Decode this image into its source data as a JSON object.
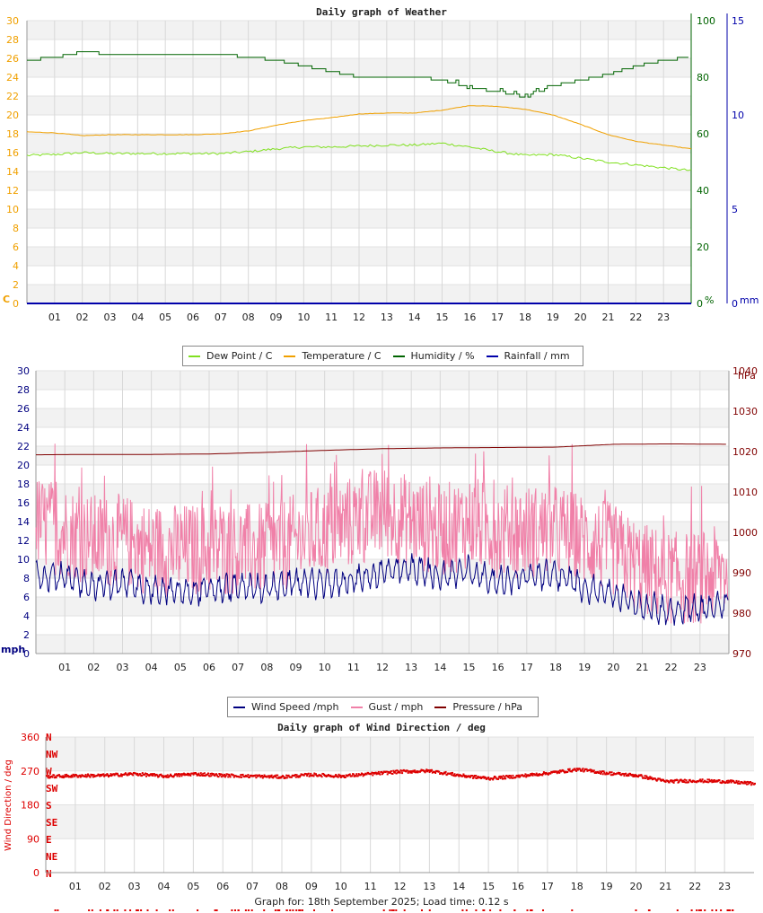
{
  "chart_data": [
    {
      "type": "line",
      "title": "Daily graph of Weather",
      "x_ticks": [
        "01",
        "02",
        "03",
        "04",
        "05",
        "06",
        "07",
        "08",
        "09",
        "10",
        "11",
        "12",
        "13",
        "14",
        "15",
        "16",
        "17",
        "18",
        "19",
        "20",
        "21",
        "22",
        "23"
      ],
      "left_axis": {
        "label": "C",
        "color": "#f0a000",
        "ylim": [
          0,
          30
        ],
        "ticks": [
          "0",
          "2",
          "4",
          "6",
          "8",
          "10",
          "12",
          "14",
          "16",
          "18",
          "20",
          "22",
          "24",
          "26",
          "28",
          "30"
        ]
      },
      "right_axis_1": {
        "label": "%",
        "color": "#006400",
        "ylim": [
          0,
          100
        ],
        "ticks": [
          "0",
          "20",
          "40",
          "60",
          "80",
          "100"
        ]
      },
      "right_axis_2": {
        "label": "mm",
        "color": "#0000aa",
        "ylim": [
          0,
          15
        ],
        "ticks": [
          "0",
          "5",
          "10",
          "15"
        ]
      },
      "grid": true,
      "legend_position": "bottom",
      "series": [
        {
          "name": "Dew Point / C",
          "color": "#80e020",
          "axis": "left",
          "x": [
            0,
            1,
            2,
            3,
            4,
            5,
            6,
            7,
            8,
            9,
            10,
            11,
            12,
            13,
            14,
            15,
            16,
            17,
            18,
            19,
            20,
            21,
            22,
            23,
            24
          ],
          "values": [
            15.7,
            15.8,
            16.0,
            15.9,
            15.9,
            15.9,
            15.9,
            15.9,
            16.1,
            16.4,
            16.6,
            16.6,
            16.7,
            16.8,
            16.8,
            17.0,
            16.6,
            16.1,
            15.7,
            15.8,
            15.4,
            15.0,
            14.7,
            14.4,
            14.1
          ]
        },
        {
          "name": "Temperature / C",
          "color": "#f0a000",
          "axis": "left",
          "x": [
            0,
            1,
            2,
            3,
            4,
            5,
            6,
            7,
            8,
            9,
            10,
            11,
            12,
            13,
            14,
            15,
            16,
            17,
            18,
            19,
            20,
            21,
            22,
            23,
            24
          ],
          "values": [
            18.2,
            18.1,
            17.8,
            17.9,
            17.9,
            17.9,
            17.9,
            18.0,
            18.3,
            18.9,
            19.4,
            19.7,
            20.1,
            20.2,
            20.2,
            20.5,
            21.0,
            20.9,
            20.6,
            20.0,
            19.0,
            17.9,
            17.2,
            16.8,
            16.4
          ]
        },
        {
          "name": "Humidity / %",
          "color": "#006400",
          "axis": "right_1",
          "x": [
            0,
            1,
            2,
            3,
            4,
            5,
            6,
            7,
            8,
            9,
            10,
            11,
            12,
            13,
            14,
            15,
            16,
            17,
            18,
            19,
            20,
            21,
            22,
            23,
            24
          ],
          "values": [
            86,
            87,
            89,
            88,
            88,
            88,
            88,
            88,
            87,
            86,
            84,
            82,
            80,
            80,
            80,
            79,
            76,
            75,
            73,
            77,
            79,
            81,
            84,
            86,
            87
          ]
        },
        {
          "name": "Rainfall / mm",
          "color": "#0000aa",
          "axis": "right_2",
          "x": [
            0,
            24
          ],
          "values": [
            0,
            0
          ]
        }
      ]
    },
    {
      "type": "line",
      "x_ticks": [
        "01",
        "02",
        "03",
        "04",
        "05",
        "06",
        "07",
        "08",
        "09",
        "10",
        "11",
        "12",
        "13",
        "14",
        "15",
        "16",
        "17",
        "18",
        "19",
        "20",
        "21",
        "22",
        "23"
      ],
      "left_axis": {
        "label": "mph",
        "color": "#000080",
        "ylim": [
          0,
          30
        ],
        "ticks": [
          "0",
          "2",
          "4",
          "6",
          "8",
          "10",
          "12",
          "14",
          "16",
          "18",
          "20",
          "22",
          "24",
          "26",
          "28",
          "30"
        ]
      },
      "right_axis": {
        "label": "hPa",
        "color": "#800000",
        "ylim": [
          970,
          1040
        ],
        "ticks": [
          "970",
          "980",
          "990",
          "1000",
          "1010",
          "1020",
          "1030",
          "1040"
        ]
      },
      "grid": true,
      "legend_position": "bottom",
      "series": [
        {
          "name": "Wind Speed /mph",
          "color": "#000080",
          "axis": "left",
          "x": [
            0,
            1,
            2,
            3,
            4,
            5,
            6,
            7,
            8,
            9,
            10,
            11,
            12,
            13,
            14,
            15,
            16,
            17,
            18,
            19,
            20,
            21,
            22,
            23,
            24
          ],
          "values": [
            8.5,
            8.0,
            7.2,
            7.5,
            6.8,
            6.5,
            6.8,
            7.0,
            6.9,
            7.6,
            7.4,
            7.8,
            8.6,
            9.0,
            8.2,
            8.8,
            7.6,
            8.2,
            8.4,
            7.0,
            6.4,
            5.0,
            4.6,
            4.8,
            5.2
          ]
        },
        {
          "name": "Gust / mph",
          "color": "#f080a8",
          "axis": "left",
          "x": [
            0,
            1,
            2,
            3,
            4,
            5,
            6,
            7,
            8,
            9,
            10,
            11,
            12,
            13,
            14,
            15,
            16,
            17,
            18,
            19,
            20,
            21,
            22,
            23,
            24
          ],
          "values": [
            14,
            13,
            12,
            12,
            11,
            11,
            11,
            11,
            11,
            12,
            13,
            14,
            15,
            14,
            13,
            14,
            13,
            13,
            13,
            12,
            11,
            9,
            8,
            8,
            9
          ]
        },
        {
          "name": "Pressure / hPa",
          "color": "#800000",
          "axis": "right",
          "x": [
            0,
            2,
            4,
            6,
            8,
            10,
            12,
            14,
            16,
            18,
            20,
            22,
            24
          ],
          "values": [
            1019.2,
            1019.3,
            1019.3,
            1019.4,
            1019.8,
            1020.3,
            1020.7,
            1020.9,
            1021.0,
            1021.1,
            1021.8,
            1021.9,
            1021.8
          ]
        }
      ]
    },
    {
      "type": "scatter",
      "title": "Daily graph of Wind Direction / deg",
      "ylabel": "Wind Direction / deg",
      "x_ticks": [
        "01",
        "02",
        "03",
        "04",
        "05",
        "06",
        "07",
        "08",
        "09",
        "10",
        "11",
        "12",
        "13",
        "14",
        "15",
        "16",
        "17",
        "18",
        "19",
        "20",
        "21",
        "22",
        "23"
      ],
      "ylim": [
        0,
        360
      ],
      "y_ticks": [
        "0",
        "90",
        "180",
        "270",
        "360"
      ],
      "compass_labels": [
        "N",
        "NE",
        "E",
        "SE",
        "S",
        "SW",
        "W",
        "NW",
        "N"
      ],
      "grid": true,
      "series": [
        {
          "name": "",
          "color": "#dd0000",
          "x": [
            0,
            1,
            2,
            3,
            4,
            5,
            6,
            7,
            8,
            9,
            10,
            11,
            12,
            13,
            14,
            15,
            16,
            17,
            18,
            19,
            20,
            21,
            22,
            23,
            24
          ],
          "values": [
            255,
            257,
            258,
            262,
            256,
            262,
            258,
            256,
            254,
            260,
            256,
            262,
            268,
            270,
            258,
            250,
            256,
            264,
            274,
            264,
            258,
            242,
            244,
            242,
            236
          ]
        }
      ]
    }
  ],
  "footer": {
    "text": "Graph for: 18th September 2025; Load time: 0.12 s"
  },
  "legend1": {
    "items": [
      {
        "label": "Dew Point / C",
        "color": "#80e020"
      },
      {
        "label": "Temperature / C",
        "color": "#f0a000"
      },
      {
        "label": "Humidity / %",
        "color": "#006400"
      },
      {
        "label": "Rainfall / mm",
        "color": "#0000aa"
      }
    ]
  },
  "legend2": {
    "items": [
      {
        "label": "Wind Speed /mph",
        "color": "#000080"
      },
      {
        "label": "Gust / mph",
        "color": "#f080a8"
      },
      {
        "label": "Pressure / hPa",
        "color": "#800000"
      }
    ]
  }
}
